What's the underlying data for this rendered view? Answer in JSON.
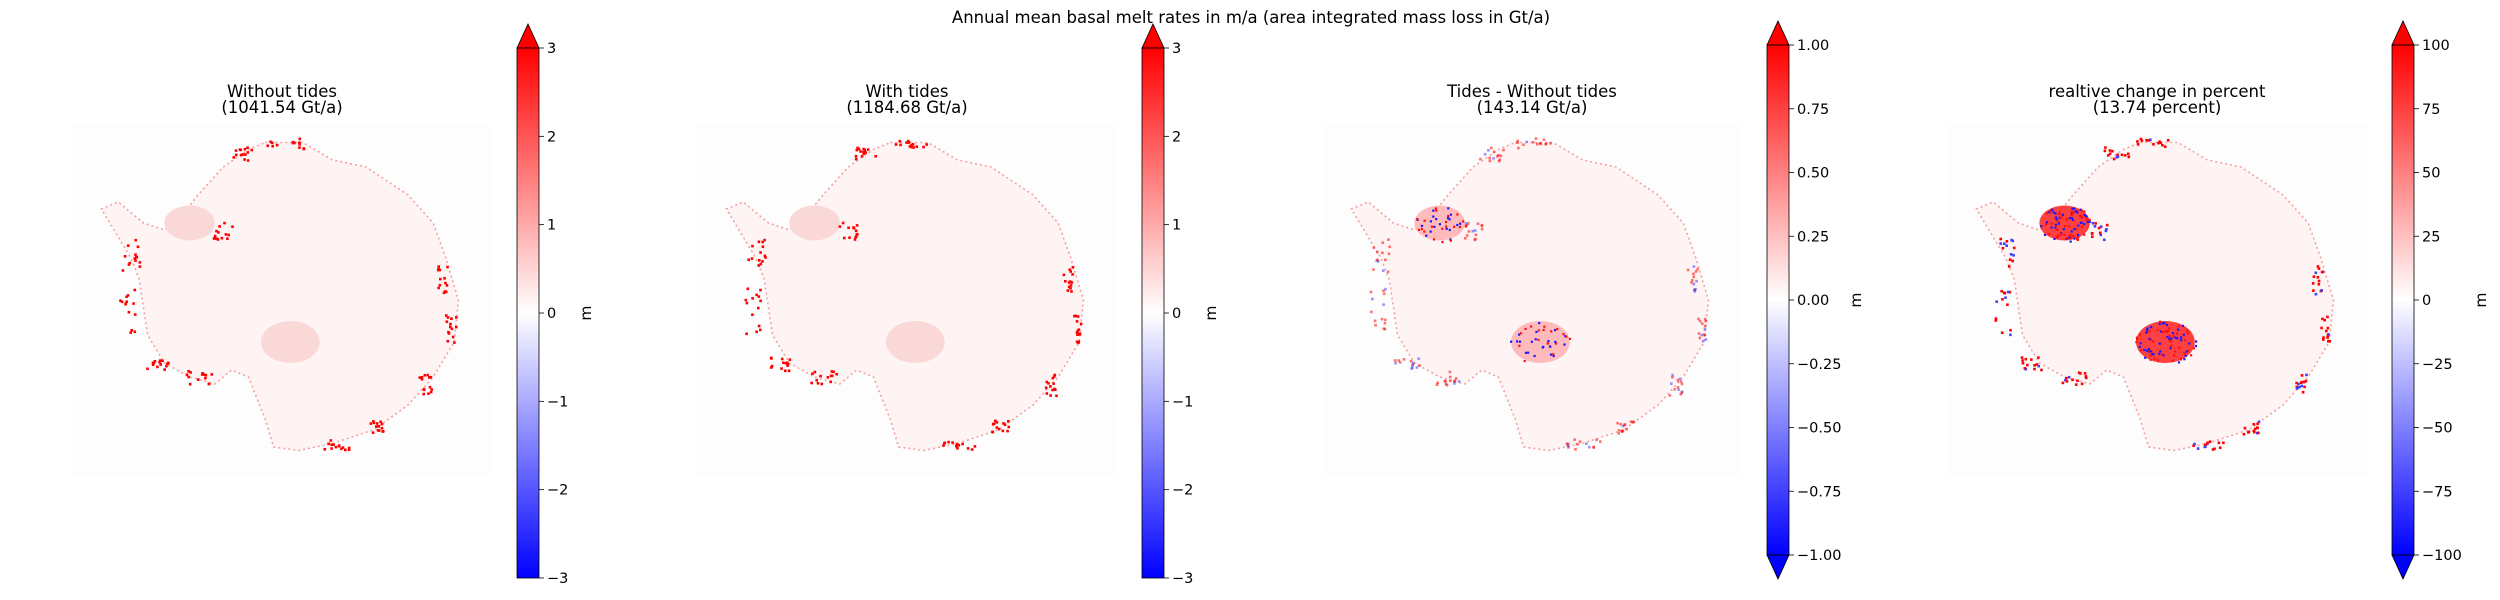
{
  "figure": {
    "title": "Annual mean basal melt rates in m/a (area integrated mass loss in Gt/a)"
  },
  "chart_data": [
    {
      "type": "heatmap",
      "title": "Without tides",
      "subtitle": "(1041.54 Gt/a)",
      "colormap": "bwr",
      "colorbar": {
        "label": "m",
        "range": [
          -3,
          3
        ],
        "ticks": [
          -3,
          -2,
          -1,
          0,
          1,
          2,
          3
        ],
        "tick_labels": [
          "−3",
          "−2",
          "−1",
          "0",
          "1",
          "2",
          "3"
        ],
        "extend": "max"
      }
    },
    {
      "type": "heatmap",
      "title": "With tides",
      "subtitle": "(1184.68 Gt/a)",
      "colormap": "bwr",
      "colorbar": {
        "label": "m",
        "range": [
          -3,
          3
        ],
        "ticks": [
          -3,
          -2,
          -1,
          0,
          1,
          2,
          3
        ],
        "tick_labels": [
          "−3",
          "−2",
          "−1",
          "0",
          "1",
          "2",
          "3"
        ],
        "extend": "max"
      }
    },
    {
      "type": "heatmap",
      "title": "Tides - Without tides",
      "subtitle": "(143.14 Gt/a)",
      "colormap": "bwr",
      "colorbar": {
        "label": "m",
        "range": [
          -1,
          1
        ],
        "ticks": [
          -1,
          -0.75,
          -0.5,
          -0.25,
          0,
          0.25,
          0.5,
          0.75,
          1
        ],
        "tick_labels": [
          "−1.00",
          "−0.75",
          "−0.50",
          "−0.25",
          "0.00",
          "0.25",
          "0.50",
          "0.75",
          "1.00"
        ],
        "extend": "both"
      }
    },
    {
      "type": "heatmap",
      "title": "realtive change in percent",
      "subtitle": "(13.74 percent)",
      "colormap": "bwr",
      "colorbar": {
        "label": "m",
        "range": [
          -100,
          100
        ],
        "ticks": [
          -100,
          -75,
          -50,
          -25,
          0,
          25,
          50,
          75,
          100
        ],
        "tick_labels": [
          "−100",
          "−75",
          "−50",
          "−25",
          "0",
          "25",
          "50",
          "75",
          "100"
        ],
        "extend": "both"
      }
    }
  ]
}
